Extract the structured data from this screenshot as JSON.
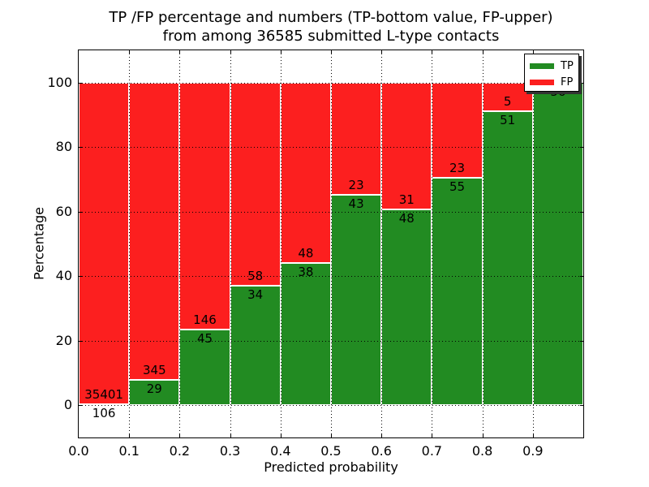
{
  "title": {
    "line1": "TP /FP percentage and numbers (TP-bottom value, FP-upper)",
    "line2": "from among 36585 submitted L-type contacts"
  },
  "axes": {
    "xlabel": "Predicted probability",
    "ylabel": "Percentage",
    "x_ticks": [
      "0.0",
      "0.1",
      "0.2",
      "0.3",
      "0.4",
      "0.5",
      "0.6",
      "0.7",
      "0.8",
      "0.9"
    ],
    "y_ticks": [
      "0",
      "20",
      "40",
      "60",
      "80",
      "100"
    ]
  },
  "legend": {
    "items": [
      {
        "label": "TP",
        "color": "#228b22"
      },
      {
        "label": "FP",
        "color": "#fc1f1f"
      }
    ]
  },
  "bar_labels": {
    "tp": [
      "106",
      "29",
      "45",
      "34",
      "38",
      "43",
      "48",
      "55",
      "51",
      "56"
    ],
    "fp": [
      "35401",
      "345",
      "146",
      "58",
      "48",
      "23",
      "31",
      "23",
      "5",
      ""
    ]
  },
  "chart_data": {
    "type": "bar",
    "stacked": true,
    "normalized_to_percent": true,
    "title": "TP /FP percentage and numbers (TP-bottom value, FP-upper) from among 36585 submitted L-type contacts",
    "xlabel": "Predicted probability",
    "ylabel": "Percentage",
    "total_contacts": 36585,
    "bin_edges": [
      0.0,
      0.1,
      0.2,
      0.3,
      0.4,
      0.5,
      0.6,
      0.7,
      0.8,
      0.9,
      1.0
    ],
    "categories": [
      "0.0-0.1",
      "0.1-0.2",
      "0.2-0.3",
      "0.3-0.4",
      "0.4-0.5",
      "0.5-0.6",
      "0.6-0.7",
      "0.7-0.8",
      "0.8-0.9",
      "0.9-1.0"
    ],
    "series": [
      {
        "name": "TP",
        "color": "#228b22",
        "counts": [
          106,
          29,
          45,
          34,
          38,
          43,
          48,
          55,
          51,
          56
        ],
        "percent": [
          0.3,
          7.75,
          23.56,
          36.96,
          44.19,
          65.15,
          60.76,
          70.51,
          91.07,
          100.0
        ]
      },
      {
        "name": "FP",
        "color": "#fc1f1f",
        "counts": [
          35401,
          345,
          146,
          58,
          48,
          23,
          31,
          23,
          5,
          0
        ],
        "percent": [
          99.7,
          92.25,
          76.44,
          63.04,
          55.81,
          34.85,
          39.24,
          29.49,
          8.93,
          0.0
        ]
      }
    ],
    "ylim": [
      -10,
      110
    ],
    "xlim": [
      0.0,
      1.0
    ],
    "grid": true,
    "grid_style": "dotted",
    "legend_position": "upper right"
  }
}
